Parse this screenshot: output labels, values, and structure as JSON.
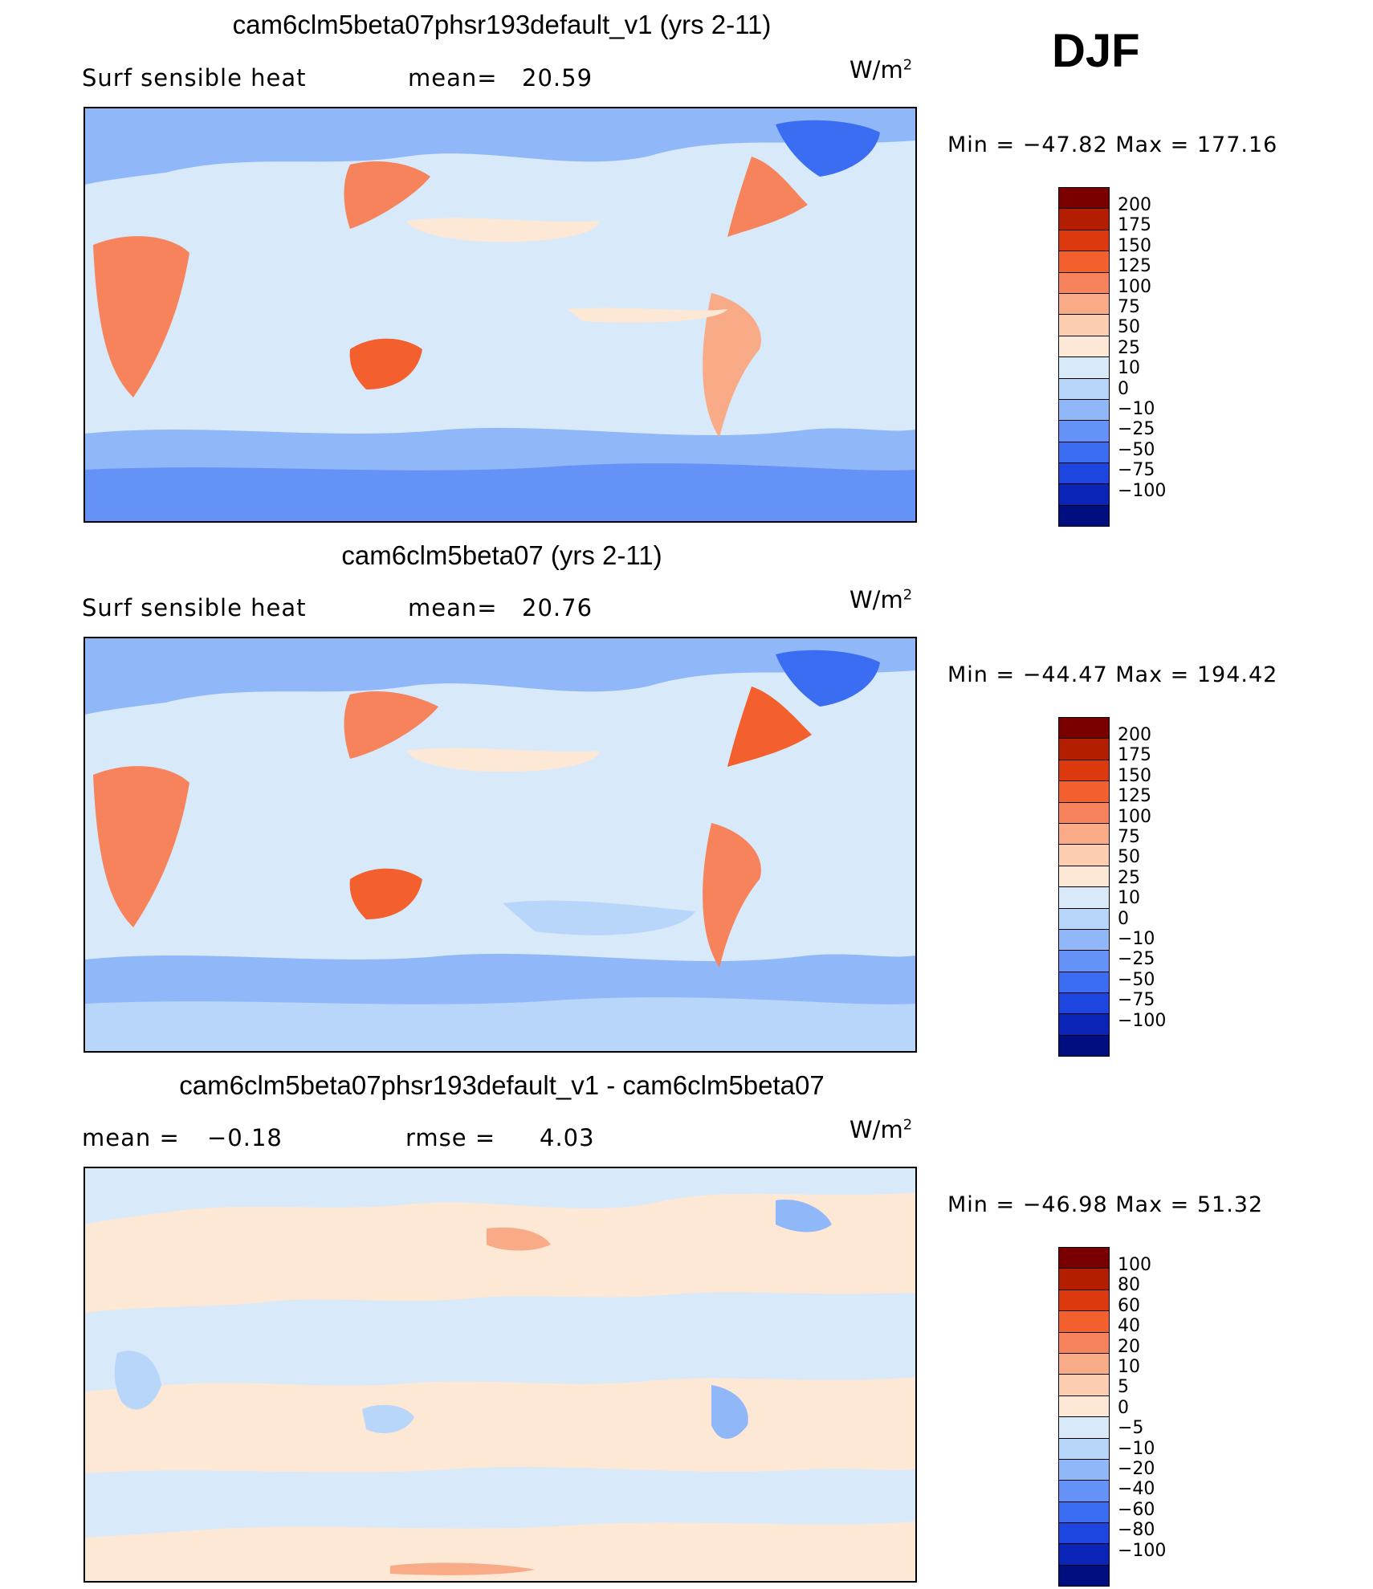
{
  "season": "DJF",
  "units_base": "W/m",
  "units_exp": "2",
  "panels": [
    {
      "title": "cam6clm5beta07phsr193default_v1 (yrs 2-11)",
      "left_label": "Surf  sensible  heat",
      "stat_label": "mean=",
      "stat_value": "20.59",
      "stat2_label": "",
      "stat2_value": "",
      "min_label": "Min  =",
      "min_value": "−47.82",
      "max_label": "Max  =",
      "max_value": "177.16",
      "colorbar": {
        "labels": [
          "200",
          "175",
          "150",
          "125",
          "100",
          "75",
          "50",
          "25",
          "10",
          "0",
          "−10",
          "−25",
          "−50",
          "−75",
          "−100"
        ],
        "colors": [
          "#7a0000",
          "#b31e00",
          "#dc3a0e",
          "#f3602d",
          "#f6835b",
          "#f9ab87",
          "#fccdb0",
          "#fde8d6",
          "#d8e9fa",
          "#b8d5fa",
          "#90b7f8",
          "#6492f6",
          "#3b6df3",
          "#1d45e0",
          "#0a24b7",
          "#000f80"
        ]
      }
    },
    {
      "title": "cam6clm5beta07 (yrs 2-11)",
      "left_label": "Surf  sensible  heat",
      "stat_label": "mean=",
      "stat_value": "20.76",
      "stat2_label": "",
      "stat2_value": "",
      "min_label": "Min  =",
      "min_value": "−44.47",
      "max_label": "Max  =",
      "max_value": "194.42",
      "colorbar": {
        "labels": [
          "200",
          "175",
          "150",
          "125",
          "100",
          "75",
          "50",
          "25",
          "10",
          "0",
          "−10",
          "−25",
          "−50",
          "−75",
          "−100"
        ],
        "colors": [
          "#7a0000",
          "#b31e00",
          "#dc3a0e",
          "#f3602d",
          "#f6835b",
          "#f9ab87",
          "#fccdb0",
          "#fde8d6",
          "#d8e9fa",
          "#b8d5fa",
          "#90b7f8",
          "#6492f6",
          "#3b6df3",
          "#1d45e0",
          "#0a24b7",
          "#000f80"
        ]
      }
    },
    {
      "title": "cam6clm5beta07phsr193default_v1 - cam6clm5beta07",
      "left_label": "mean  =",
      "stat_label": "",
      "stat_value": "−0.18",
      "stat2_label": "rmse  =",
      "stat2_value": "4.03",
      "min_label": "Min  =",
      "min_value": "−46.98",
      "max_label": "Max  =",
      "max_value": "51.32",
      "colorbar": {
        "labels": [
          "100",
          "80",
          "60",
          "40",
          "20",
          "10",
          "5",
          "0",
          "−5",
          "−10",
          "−20",
          "−40",
          "−60",
          "−80",
          "−100"
        ],
        "colors": [
          "#7a0000",
          "#b31e00",
          "#dc3a0e",
          "#f3602d",
          "#f6835b",
          "#f9ab87",
          "#fccdb0",
          "#fde8d6",
          "#d8e9fa",
          "#b8d5fa",
          "#90b7f8",
          "#6492f6",
          "#3b6df3",
          "#1d45e0",
          "#0a24b7",
          "#000f80"
        ]
      }
    }
  ]
}
